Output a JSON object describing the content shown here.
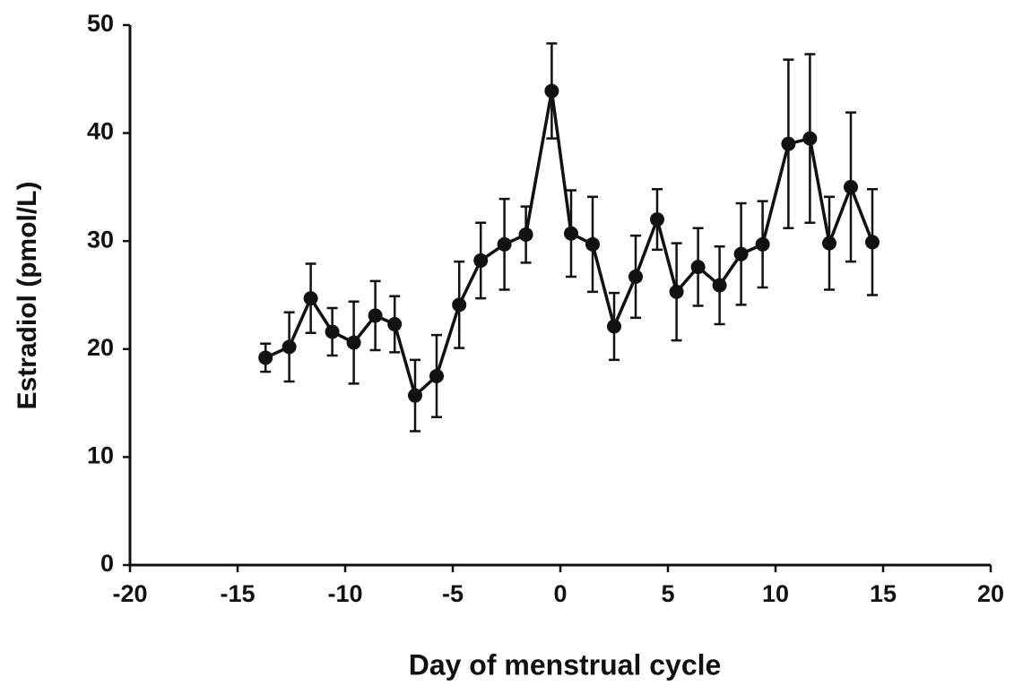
{
  "chart_data": {
    "type": "line",
    "x_label": "Day of menstrual cycle",
    "y_label": "Estradiol (pmol/L)",
    "x": [
      -13.7,
      -12.6,
      -11.6,
      -10.6,
      -9.6,
      -8.6,
      -7.7,
      -6.75,
      -5.75,
      -4.7,
      -3.7,
      -2.6,
      -1.6,
      -0.4,
      0.5,
      1.5,
      2.5,
      3.5,
      4.5,
      5.4,
      6.4,
      7.4,
      8.4,
      9.4,
      10.6,
      11.6,
      12.5,
      13.5,
      14.5
    ],
    "values": [
      19.2,
      20.2,
      24.7,
      21.6,
      20.6,
      23.1,
      22.3,
      15.7,
      17.5,
      24.1,
      28.2,
      29.7,
      30.6,
      43.9,
      30.7,
      29.7,
      22.1,
      26.7,
      32,
      25.3,
      27.6,
      25.9,
      28.8,
      29.7,
      39,
      39.5,
      29.8,
      35,
      29.9
    ],
    "errors": [
      1.3,
      3.2,
      3.2,
      2.2,
      3.8,
      3.2,
      2.6,
      3.3,
      3.8,
      4,
      3.5,
      4.2,
      2.6,
      4.4,
      4,
      4.4,
      3.1,
      3.8,
      2.8,
      4.5,
      3.6,
      3.6,
      4.7,
      4,
      7.8,
      7.8,
      4.3,
      6.9,
      4.9
    ],
    "color": "#111111",
    "xlim": [
      -20,
      20
    ],
    "xticks": [
      -20,
      -15,
      -10,
      -5,
      0,
      5,
      10,
      15,
      20
    ],
    "ylim": [
      0,
      50
    ],
    "yticks": [
      0,
      10,
      20,
      30,
      40,
      50
    ]
  }
}
